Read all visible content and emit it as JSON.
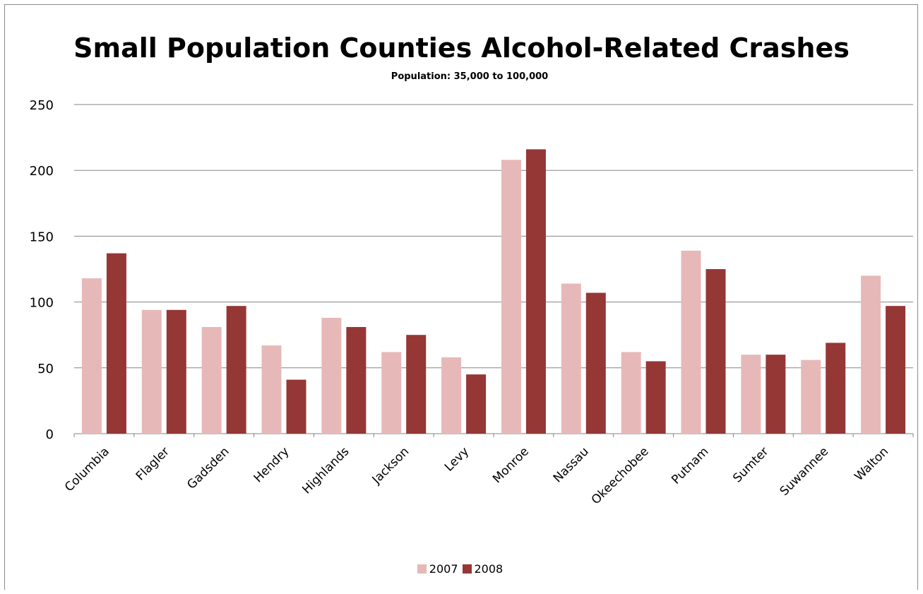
{
  "chart_data": {
    "type": "bar",
    "title": "Small Population Counties Alcohol-Related Crashes",
    "subtitle": "Population:  35,000 to 100,000",
    "xlabel": "",
    "ylabel": "",
    "ylim": [
      0,
      250
    ],
    "yticks": [
      "0",
      "50",
      "100",
      "150",
      "200",
      "250"
    ],
    "grid": true,
    "legend_position": "bottom",
    "categories": [
      "Columbia",
      "Flagler",
      "Gadsden",
      "Hendry",
      "Highlands",
      "Jackson",
      "Levy",
      "Monroe",
      "Nassau",
      "Okeechobee",
      "Putnam",
      "Sumter",
      "Suwannee",
      "Walton"
    ],
    "series": [
      {
        "name": "2007",
        "color": "#e6b9b8",
        "values": [
          118,
          94,
          81,
          67,
          88,
          62,
          58,
          208,
          114,
          62,
          139,
          60,
          56,
          120
        ]
      },
      {
        "name": "2008",
        "color": "#953735",
        "values": [
          137,
          94,
          97,
          41,
          81,
          75,
          45,
          216,
          107,
          55,
          125,
          60,
          69,
          97
        ]
      }
    ]
  }
}
